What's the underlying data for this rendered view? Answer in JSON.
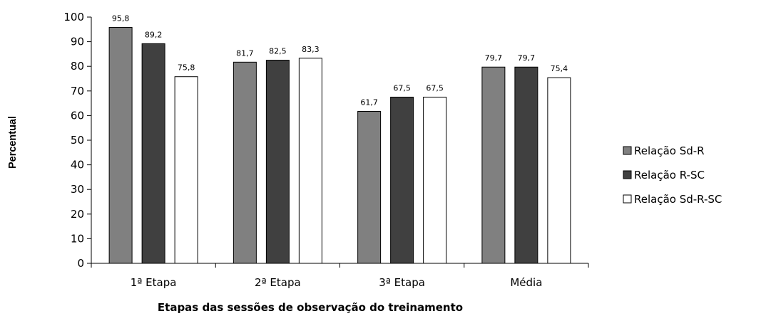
{
  "chart_data": {
    "type": "bar",
    "categories": [
      "1ª Etapa",
      "2ª Etapa",
      "3ª Etapa",
      "Média"
    ],
    "series": [
      {
        "name": "Relação Sd-R",
        "values": [
          95.8,
          81.7,
          61.7,
          79.7
        ],
        "labels": [
          "95,8",
          "81,7",
          "61,7",
          "79,7"
        ],
        "color": "#808080"
      },
      {
        "name": "Relação R-SC",
        "values": [
          89.2,
          82.5,
          67.5,
          79.7
        ],
        "labels": [
          "89,2",
          "82,5",
          "67,5",
          "79,7"
        ],
        "color": "#404040"
      },
      {
        "name": "Relação Sd-R-SC",
        "values": [
          75.8,
          83.3,
          67.5,
          75.4
        ],
        "labels": [
          "75,8",
          "83,3",
          "67,5",
          "75,4"
        ],
        "color": "#ffffff"
      }
    ],
    "xlabel": "Etapas das sessões de observação do treinamento",
    "ylabel": "Percentual",
    "ylim": [
      0,
      100
    ],
    "yticks": [
      0,
      10,
      20,
      30,
      40,
      50,
      60,
      70,
      80,
      90,
      100
    ],
    "grid": false,
    "legend_position": "right"
  }
}
